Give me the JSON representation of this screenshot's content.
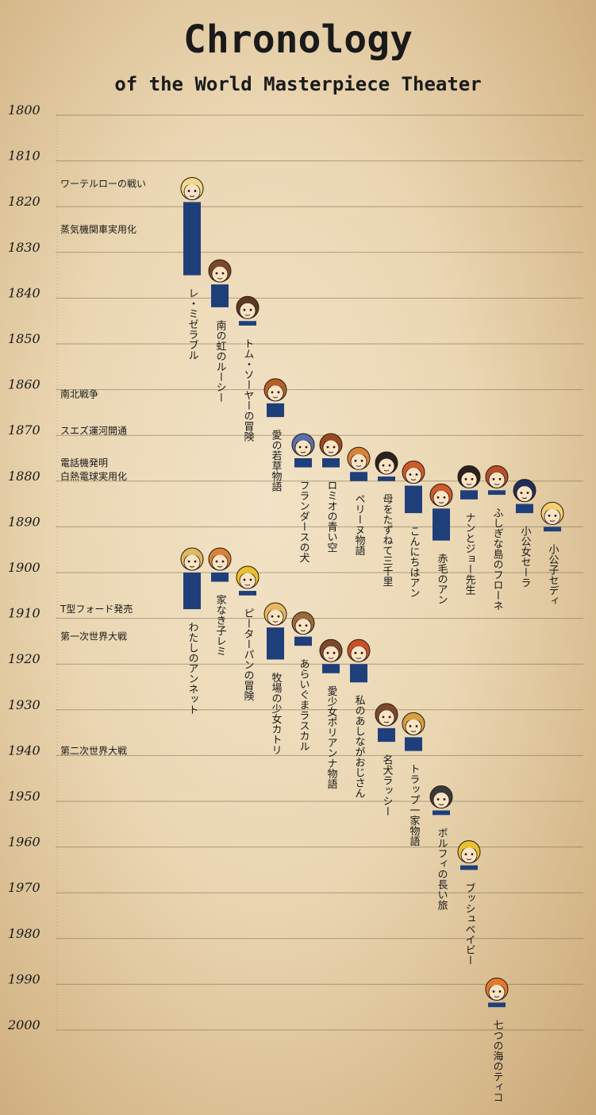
{
  "header": {
    "title": "Chronology",
    "subtitle": "of the World Masterpiece Theater"
  },
  "colors": {
    "bar": "#1f3f7a",
    "grid": "#7a6a52",
    "text": "#1a1a1a"
  },
  "chart_data": {
    "type": "bar",
    "orientation": "vertical-timeline",
    "ylim": [
      1800,
      2000
    ],
    "y_ticks": [
      "1800",
      "1810",
      "1820",
      "1830",
      "1840",
      "1850",
      "1860",
      "1870",
      "1880",
      "1890",
      "1900",
      "1910",
      "1920",
      "1930",
      "1940",
      "1950",
      "1960",
      "1970",
      "1980",
      "1990",
      "2000"
    ],
    "events": [
      {
        "year": 1815,
        "label": "ワーテルローの戦い"
      },
      {
        "year": 1825,
        "label": "蒸気機関車実用化"
      },
      {
        "year": 1861,
        "label": "南北戦争"
      },
      {
        "year": 1869,
        "label": "スエズ運河開通"
      },
      {
        "year": 1876,
        "label": "電話機発明"
      },
      {
        "year": 1879,
        "label": "白熱電球実用化"
      },
      {
        "year": 1908,
        "label": "T型フォード発売"
      },
      {
        "year": 1914,
        "label": "第一次世界大戦"
      },
      {
        "year": 1939,
        "label": "第二次世界大戦"
      }
    ],
    "series": [
      {
        "name": "レ・ミゼラブル",
        "start": 1819,
        "end": 1835,
        "hair": "#f2d98a"
      },
      {
        "name": "南の虹のルーシー",
        "start": 1837,
        "end": 1842,
        "hair": "#7a4a2a"
      },
      {
        "name": "トム・ソーヤーの冒険",
        "start": 1845,
        "end": 1846,
        "hair": "#5a3a22"
      },
      {
        "name": "愛の若草物語",
        "start": 1863,
        "end": 1866,
        "hair": "#b5602a"
      },
      {
        "name": "フランダースの犬",
        "start": 1875,
        "end": 1877,
        "hair": "#5a6fa8"
      },
      {
        "name": "ロミオの青い空",
        "start": 1875,
        "end": 1877,
        "hair": "#9a4a22"
      },
      {
        "name": "ペリーヌ物語",
        "start": 1878,
        "end": 1880,
        "hair": "#d9823a"
      },
      {
        "name": "母をたずねて三千里",
        "start": 1879,
        "end": 1880,
        "hair": "#2a2220"
      },
      {
        "name": "こんにちはアン",
        "start": 1881,
        "end": 1887,
        "hair": "#cf5a2a"
      },
      {
        "name": "赤毛のアン",
        "start": 1886,
        "end": 1893,
        "hair": "#cf5a2a"
      },
      {
        "name": "ナンとジョー先生",
        "start": 1882,
        "end": 1884,
        "hair": "#2a2220"
      },
      {
        "name": "ふしぎな島のフローネ",
        "start": 1882,
        "end": 1883,
        "hair": "#b5502a"
      },
      {
        "name": "小公女セーラ",
        "start": 1885,
        "end": 1887,
        "hair": "#1f2f5a"
      },
      {
        "name": "小公子セディ",
        "start": 1890,
        "end": 1891,
        "hair": "#f2d070"
      },
      {
        "name": "わたしのアンネット",
        "start": 1900,
        "end": 1908,
        "hair": "#e0b860"
      },
      {
        "name": "家なき子レミ",
        "start": 1900,
        "end": 1902,
        "hair": "#d9823a"
      },
      {
        "name": "ピーターパンの冒険",
        "start": 1904,
        "end": 1905,
        "hair": "#e8c030"
      },
      {
        "name": "牧場の少女カトリ",
        "start": 1912,
        "end": 1919,
        "hair": "#e8b860"
      },
      {
        "name": "あらいぐまラスカル",
        "start": 1914,
        "end": 1916,
        "hair": "#9a6a3a"
      },
      {
        "name": "愛少女ポリアンナ物語",
        "start": 1920,
        "end": 1922,
        "hair": "#7a4a2a"
      },
      {
        "name": "私のあしながおじさん",
        "start": 1920,
        "end": 1924,
        "hair": "#c9502a"
      },
      {
        "name": "名犬ラッシー",
        "start": 1934,
        "end": 1937,
        "hair": "#7a4a2a"
      },
      {
        "name": "トラップ一家物語",
        "start": 1936,
        "end": 1939,
        "hair": "#d9a040"
      },
      {
        "name": "ボルフィの長い旅",
        "start": 1952,
        "end": 1953,
        "hair": "#3a3a3a"
      },
      {
        "name": "ブッシュベイビー",
        "start": 1964,
        "end": 1965,
        "hair": "#e8c030"
      },
      {
        "name": "七つの海のティコ",
        "start": 1994,
        "end": 1995,
        "hair": "#e07a2a"
      }
    ]
  }
}
